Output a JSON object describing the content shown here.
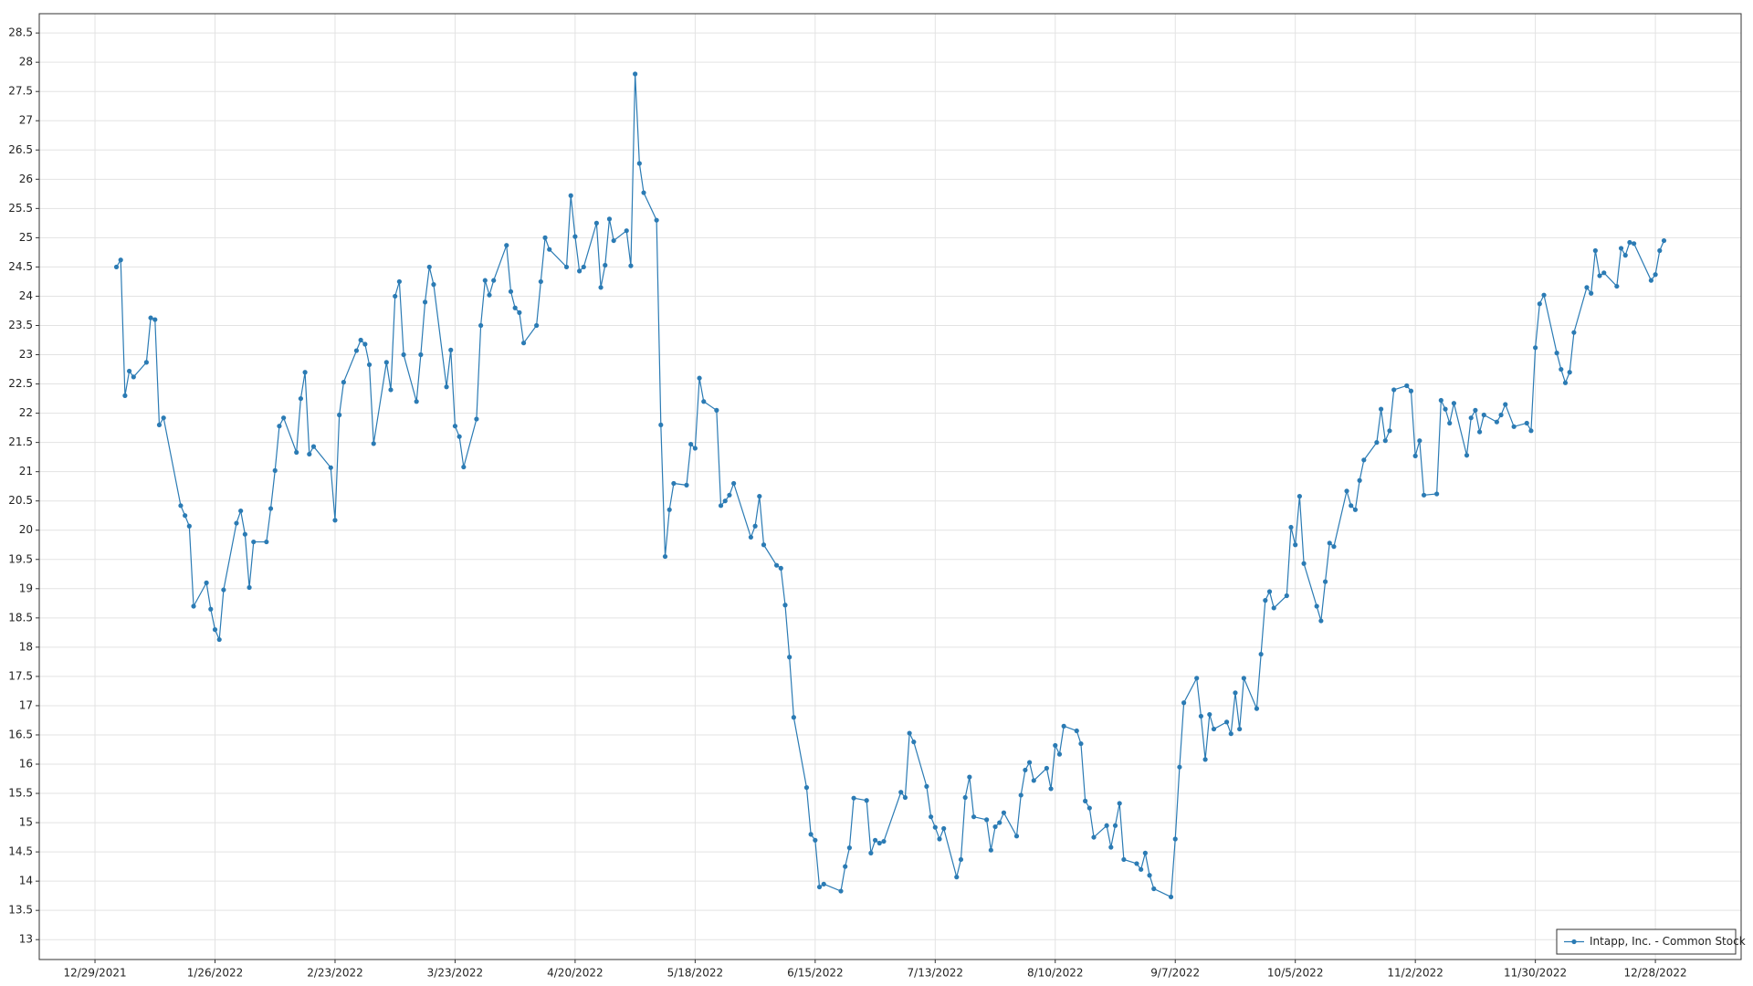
{
  "chart_data": {
    "type": "line",
    "x": [
      "2022-01-03",
      "2022-01-04",
      "2022-01-05",
      "2022-01-06",
      "2022-01-07",
      "2022-01-10",
      "2022-01-11",
      "2022-01-12",
      "2022-01-13",
      "2022-01-14",
      "2022-01-18",
      "2022-01-19",
      "2022-01-20",
      "2022-01-21",
      "2022-01-24",
      "2022-01-25",
      "2022-01-26",
      "2022-01-27",
      "2022-01-28",
      "2022-01-31",
      "2022-02-01",
      "2022-02-02",
      "2022-02-03",
      "2022-02-04",
      "2022-02-07",
      "2022-02-08",
      "2022-02-09",
      "2022-02-10",
      "2022-02-11",
      "2022-02-14",
      "2022-02-15",
      "2022-02-16",
      "2022-02-17",
      "2022-02-18",
      "2022-02-22",
      "2022-02-23",
      "2022-02-24",
      "2022-02-25",
      "2022-02-28",
      "2022-03-01",
      "2022-03-02",
      "2022-03-03",
      "2022-03-04",
      "2022-03-07",
      "2022-03-08",
      "2022-03-09",
      "2022-03-10",
      "2022-03-11",
      "2022-03-14",
      "2022-03-15",
      "2022-03-16",
      "2022-03-17",
      "2022-03-18",
      "2022-03-21",
      "2022-03-22",
      "2022-03-23",
      "2022-03-24",
      "2022-03-25",
      "2022-03-28",
      "2022-03-29",
      "2022-03-30",
      "2022-03-31",
      "2022-04-01",
      "2022-04-04",
      "2022-04-05",
      "2022-04-06",
      "2022-04-07",
      "2022-04-08",
      "2022-04-11",
      "2022-04-12",
      "2022-04-13",
      "2022-04-14",
      "2022-04-18",
      "2022-04-19",
      "2022-04-20",
      "2022-04-21",
      "2022-04-22",
      "2022-04-25",
      "2022-04-26",
      "2022-04-27",
      "2022-04-28",
      "2022-04-29",
      "2022-05-02",
      "2022-05-03",
      "2022-05-04",
      "2022-05-05",
      "2022-05-06",
      "2022-05-09",
      "2022-05-10",
      "2022-05-11",
      "2022-05-12",
      "2022-05-13",
      "2022-05-16",
      "2022-05-17",
      "2022-05-18",
      "2022-05-19",
      "2022-05-20",
      "2022-05-23",
      "2022-05-24",
      "2022-05-25",
      "2022-05-26",
      "2022-05-27",
      "2022-05-31",
      "2022-06-01",
      "2022-06-02",
      "2022-06-03",
      "2022-06-06",
      "2022-06-07",
      "2022-06-08",
      "2022-06-09",
      "2022-06-10",
      "2022-06-13",
      "2022-06-14",
      "2022-06-15",
      "2022-06-16",
      "2022-06-17",
      "2022-06-21",
      "2022-06-22",
      "2022-06-23",
      "2022-06-24",
      "2022-06-27",
      "2022-06-28",
      "2022-06-29",
      "2022-06-30",
      "2022-07-01",
      "2022-07-05",
      "2022-07-06",
      "2022-07-07",
      "2022-07-08",
      "2022-07-11",
      "2022-07-12",
      "2022-07-13",
      "2022-07-14",
      "2022-07-15",
      "2022-07-18",
      "2022-07-19",
      "2022-07-20",
      "2022-07-21",
      "2022-07-22",
      "2022-07-25",
      "2022-07-26",
      "2022-07-27",
      "2022-07-28",
      "2022-07-29",
      "2022-08-01",
      "2022-08-02",
      "2022-08-03",
      "2022-08-04",
      "2022-08-05",
      "2022-08-08",
      "2022-08-09",
      "2022-08-10",
      "2022-08-11",
      "2022-08-12",
      "2022-08-15",
      "2022-08-16",
      "2022-08-17",
      "2022-08-18",
      "2022-08-19",
      "2022-08-22",
      "2022-08-23",
      "2022-08-24",
      "2022-08-25",
      "2022-08-26",
      "2022-08-29",
      "2022-08-30",
      "2022-08-31",
      "2022-09-01",
      "2022-09-02",
      "2022-09-06",
      "2022-09-07",
      "2022-09-08",
      "2022-09-09",
      "2022-09-12",
      "2022-09-13",
      "2022-09-14",
      "2022-09-15",
      "2022-09-16",
      "2022-09-19",
      "2022-09-20",
      "2022-09-21",
      "2022-09-22",
      "2022-09-23",
      "2022-09-26",
      "2022-09-27",
      "2022-09-28",
      "2022-09-29",
      "2022-09-30",
      "2022-10-03",
      "2022-10-04",
      "2022-10-05",
      "2022-10-06",
      "2022-10-07",
      "2022-10-10",
      "2022-10-11",
      "2022-10-12",
      "2022-10-13",
      "2022-10-14",
      "2022-10-17",
      "2022-10-18",
      "2022-10-19",
      "2022-10-20",
      "2022-10-21",
      "2022-10-24",
      "2022-10-25",
      "2022-10-26",
      "2022-10-27",
      "2022-10-28",
      "2022-10-31",
      "2022-11-01",
      "2022-11-02",
      "2022-11-03",
      "2022-11-04",
      "2022-11-07",
      "2022-11-08",
      "2022-11-09",
      "2022-11-10",
      "2022-11-11",
      "2022-11-14",
      "2022-11-15",
      "2022-11-16",
      "2022-11-17",
      "2022-11-18",
      "2022-11-21",
      "2022-11-22",
      "2022-11-23",
      "2022-11-25",
      "2022-11-28",
      "2022-11-29",
      "2022-11-30",
      "2022-12-01",
      "2022-12-02",
      "2022-12-05",
      "2022-12-06",
      "2022-12-07",
      "2022-12-08",
      "2022-12-09",
      "2022-12-12",
      "2022-12-13",
      "2022-12-14",
      "2022-12-15",
      "2022-12-16",
      "2022-12-19",
      "2022-12-20",
      "2022-12-21",
      "2022-12-22",
      "2022-12-23",
      "2022-12-27",
      "2022-12-28",
      "2022-12-29",
      "2022-12-30"
    ],
    "series": [
      {
        "name": "Intapp, Inc. - Common Stock",
        "color": "#2b7bb4",
        "values": [
          24.5,
          24.62,
          22.3,
          22.72,
          22.62,
          22.87,
          23.63,
          23.6,
          21.8,
          21.92,
          20.42,
          20.25,
          20.07,
          18.7,
          19.1,
          18.65,
          18.3,
          18.13,
          18.98,
          20.12,
          20.33,
          19.93,
          19.02,
          19.8,
          19.8,
          20.37,
          21.02,
          21.78,
          21.92,
          21.33,
          22.25,
          22.7,
          21.3,
          21.43,
          21.07,
          20.17,
          21.97,
          22.53,
          23.07,
          23.25,
          23.18,
          22.83,
          21.48,
          22.87,
          22.4,
          24.0,
          24.25,
          23.0,
          22.2,
          23.0,
          23.9,
          24.5,
          24.2,
          22.45,
          23.08,
          21.78,
          21.6,
          21.08,
          21.9,
          23.5,
          24.27,
          24.02,
          24.27,
          24.87,
          24.08,
          23.8,
          23.72,
          23.2,
          23.5,
          24.25,
          25.0,
          24.8,
          24.5,
          25.72,
          25.02,
          24.43,
          24.5,
          25.25,
          24.15,
          24.53,
          25.32,
          24.95,
          25.12,
          24.52,
          27.8,
          26.27,
          25.77,
          25.3,
          21.8,
          19.55,
          20.35,
          20.8,
          20.77,
          21.47,
          21.4,
          22.6,
          22.2,
          22.05,
          20.42,
          20.5,
          20.6,
          20.8,
          19.88,
          20.07,
          20.58,
          19.75,
          19.4,
          19.35,
          18.72,
          17.83,
          16.8,
          15.6,
          14.8,
          14.7,
          13.9,
          13.95,
          13.83,
          14.25,
          14.57,
          15.42,
          15.38,
          14.48,
          14.7,
          14.65,
          14.68,
          15.52,
          15.43,
          16.53,
          16.38,
          15.62,
          15.1,
          14.92,
          14.72,
          14.9,
          14.07,
          14.37,
          15.43,
          15.78,
          15.1,
          15.05,
          14.53,
          14.93,
          15.0,
          15.17,
          14.77,
          15.47,
          15.9,
          16.03,
          15.72,
          15.93,
          15.58,
          16.32,
          16.17,
          16.65,
          16.57,
          16.35,
          15.37,
          15.25,
          14.75,
          14.95,
          14.58,
          14.95,
          15.33,
          14.37,
          14.3,
          14.2,
          14.48,
          14.1,
          13.87,
          13.73,
          14.72,
          15.95,
          17.05,
          17.47,
          16.82,
          16.08,
          16.85,
          16.6,
          16.72,
          16.52,
          17.22,
          16.6,
          17.47,
          16.95,
          17.88,
          18.8,
          18.95,
          18.67,
          18.88,
          20.05,
          19.75,
          20.58,
          19.43,
          18.7,
          18.45,
          19.12,
          19.78,
          19.72,
          20.67,
          20.42,
          20.35,
          20.85,
          21.2,
          21.5,
          22.07,
          21.53,
          21.7,
          22.4,
          22.47,
          22.38,
          21.27,
          21.53,
          20.6,
          20.62,
          22.22,
          22.07,
          21.83,
          22.17,
          21.28,
          21.92,
          22.05,
          21.68,
          21.97,
          21.85,
          21.97,
          22.15,
          21.77,
          21.83,
          21.7,
          23.12,
          23.87,
          24.02,
          23.03,
          22.75,
          22.52,
          22.7,
          23.38,
          24.15,
          24.05,
          24.78,
          24.35,
          24.4,
          24.17,
          24.82,
          24.7,
          24.92,
          24.9,
          24.27,
          24.37,
          24.78,
          24.95
        ]
      }
    ],
    "xlim": [
      "2021-12-16",
      "2023-01-17"
    ],
    "xticks": [
      {
        "value": "2021-12-29",
        "label": "12/29/2021"
      },
      {
        "value": "2022-01-26",
        "label": "1/26/2022"
      },
      {
        "value": "2022-02-23",
        "label": "2/23/2022"
      },
      {
        "value": "2022-03-23",
        "label": "3/23/2022"
      },
      {
        "value": "2022-04-20",
        "label": "4/20/2022"
      },
      {
        "value": "2022-05-18",
        "label": "5/18/2022"
      },
      {
        "value": "2022-06-15",
        "label": "6/15/2022"
      },
      {
        "value": "2022-07-13",
        "label": "7/13/2022"
      },
      {
        "value": "2022-08-10",
        "label": "8/10/2022"
      },
      {
        "value": "2022-09-07",
        "label": "9/7/2022"
      },
      {
        "value": "2022-10-05",
        "label": "10/5/2022"
      },
      {
        "value": "2022-11-02",
        "label": "11/2/2022"
      },
      {
        "value": "2022-11-30",
        "label": "11/30/2022"
      },
      {
        "value": "2022-12-28",
        "label": "12/28/2022"
      }
    ],
    "ylim": [
      12.66,
      28.83
    ],
    "yticks": [
      13,
      13.5,
      14,
      14.5,
      15,
      15.5,
      16,
      16.5,
      17,
      17.5,
      18,
      18.5,
      19,
      19.5,
      20,
      20.5,
      21,
      21.5,
      22,
      22.5,
      23,
      23.5,
      24,
      24.5,
      25,
      25.5,
      26,
      26.5,
      27,
      27.5,
      28,
      28.5
    ],
    "grid": true,
    "legend": "lower right"
  }
}
